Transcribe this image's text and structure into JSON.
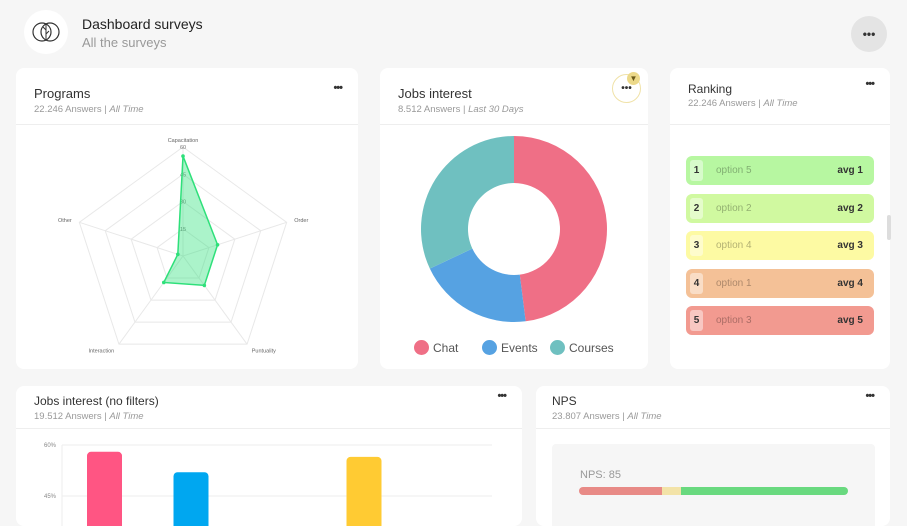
{
  "header": {
    "title": "Dashboard surveys",
    "subtitle": "All the surveys",
    "menu": "•••"
  },
  "programs": {
    "title": "Programs",
    "answers": "22.246 Answers",
    "period": "All Time",
    "menu": "•••",
    "chart_data": {
      "type": "radar",
      "axes": [
        "Capacitation",
        "Order",
        "Puntuality",
        "Interaction",
        "Other"
      ],
      "ticks": [
        "15",
        "30",
        "45",
        "60"
      ],
      "max": 60,
      "values": [
        55,
        20,
        20,
        18,
        3
      ],
      "color": "#2ee07a"
    }
  },
  "jobs": {
    "title": "Jobs interest",
    "answers": "8.512 Answers",
    "period": "Last 30 Days",
    "menu": "•••",
    "chart_data": {
      "type": "pie",
      "donut": true,
      "labels": [
        "Chat",
        "Events",
        "Courses"
      ],
      "values": [
        48,
        20,
        32
      ],
      "colors": [
        "#ef6f86",
        "#56a2e2",
        "#6fc0c0"
      ]
    }
  },
  "ranking": {
    "title": "Ranking",
    "answers": "22.246 Answers",
    "period": "All Time",
    "menu": "•••",
    "items": [
      {
        "n": "1",
        "option": "option 5",
        "avg": "avg 1",
        "color": "#b7f7a1"
      },
      {
        "n": "2",
        "option": "option 2",
        "avg": "avg 2",
        "color": "#d0f9a0"
      },
      {
        "n": "3",
        "option": "option 4",
        "avg": "avg 3",
        "color": "#fdfaa3"
      },
      {
        "n": "4",
        "option": "option 1",
        "avg": "avg 4",
        "color": "#f4c197"
      },
      {
        "n": "5",
        "option": "option 3",
        "avg": "avg 5",
        "color": "#f29a90"
      }
    ]
  },
  "jobs_nofilter": {
    "title": "Jobs interest (no filters)",
    "answers": "19.512 Answers",
    "period": "All Time",
    "menu": "•••",
    "chart_data": {
      "type": "bar",
      "yticks": [
        "60%",
        "45%"
      ],
      "ylim_visible": [
        45,
        60
      ],
      "values": [
        58,
        52,
        null,
        56.5
      ],
      "colors": [
        "#ff5583",
        "#00a7f0",
        "#cccccc",
        "#ffcb33"
      ]
    }
  },
  "nps": {
    "title": "NPS",
    "answers": "23.807 Answers",
    "period": "All Time",
    "menu": "•••",
    "label": "NPS: 85",
    "segments": [
      {
        "value": 31,
        "color": "#e88a86"
      },
      {
        "value": 7,
        "color": "#f3e3a8"
      },
      {
        "value": 62,
        "color": "#69d97f"
      }
    ]
  }
}
